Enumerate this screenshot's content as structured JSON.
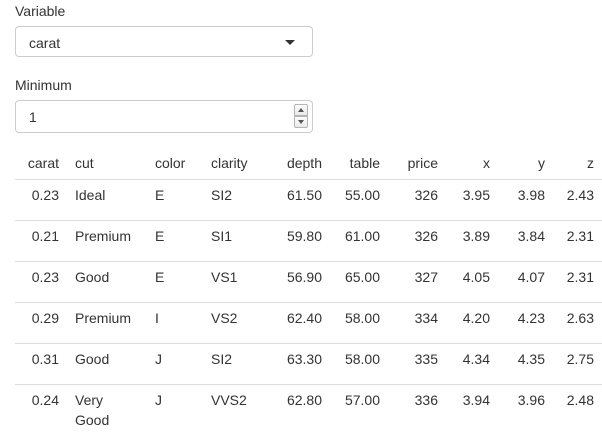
{
  "inputs": {
    "variable_label": "Variable",
    "variable_value": "carat",
    "minimum_label": "Minimum",
    "minimum_value": "1"
  },
  "table": {
    "columns": [
      {
        "key": "carat",
        "label": "carat",
        "align": "r"
      },
      {
        "key": "cut",
        "label": "cut",
        "align": "l"
      },
      {
        "key": "color",
        "label": "color",
        "align": "l"
      },
      {
        "key": "clarity",
        "label": "clarity",
        "align": "l"
      },
      {
        "key": "depth",
        "label": "depth",
        "align": "r"
      },
      {
        "key": "table",
        "label": "table",
        "align": "r"
      },
      {
        "key": "price",
        "label": "price",
        "align": "r"
      },
      {
        "key": "x",
        "label": "x",
        "align": "r"
      },
      {
        "key": "y",
        "label": "y",
        "align": "r"
      },
      {
        "key": "z",
        "label": "z",
        "align": "r"
      }
    ],
    "rows": [
      {
        "carat": "0.23",
        "cut": "Ideal",
        "color": "E",
        "clarity": "SI2",
        "depth": "61.50",
        "table": "55.00",
        "price": "326",
        "x": "3.95",
        "y": "3.98",
        "z": "2.43"
      },
      {
        "carat": "0.21",
        "cut": "Premium",
        "color": "E",
        "clarity": "SI1",
        "depth": "59.80",
        "table": "61.00",
        "price": "326",
        "x": "3.89",
        "y": "3.84",
        "z": "2.31"
      },
      {
        "carat": "0.23",
        "cut": "Good",
        "color": "E",
        "clarity": "VS1",
        "depth": "56.90",
        "table": "65.00",
        "price": "327",
        "x": "4.05",
        "y": "4.07",
        "z": "2.31"
      },
      {
        "carat": "0.29",
        "cut": "Premium",
        "color": "I",
        "clarity": "VS2",
        "depth": "62.40",
        "table": "58.00",
        "price": "334",
        "x": "4.20",
        "y": "4.23",
        "z": "2.63"
      },
      {
        "carat": "0.31",
        "cut": "Good",
        "color": "J",
        "clarity": "SI2",
        "depth": "63.30",
        "table": "58.00",
        "price": "335",
        "x": "4.34",
        "y": "4.35",
        "z": "2.75"
      },
      {
        "carat": "0.24",
        "cut": "Very Good",
        "color": "J",
        "clarity": "VVS2",
        "depth": "62.80",
        "table": "57.00",
        "price": "336",
        "x": "3.94",
        "y": "3.96",
        "z": "2.48"
      }
    ]
  }
}
